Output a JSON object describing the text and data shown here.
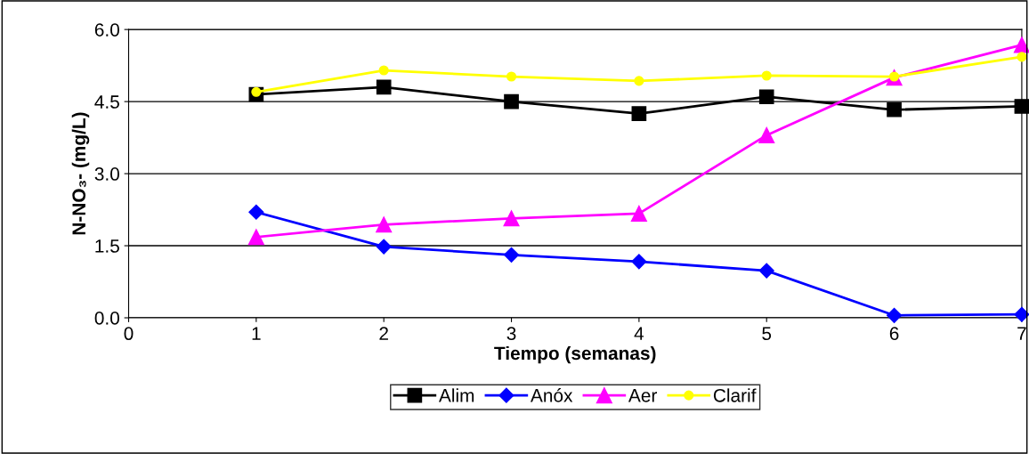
{
  "chart_data": {
    "type": "line",
    "xlabel": "Tiempo (semanas)",
    "ylabel": "N-NO₃- (mg/L)",
    "x": [
      1,
      2,
      3,
      4,
      5,
      6,
      7
    ],
    "series": [
      {
        "name": "Alim",
        "color": "#000000",
        "marker": "square",
        "values": [
          4.65,
          4.8,
          4.5,
          4.25,
          4.6,
          4.33,
          4.4
        ]
      },
      {
        "name": "Anóx",
        "color": "#0000ff",
        "marker": "diamond",
        "values": [
          2.2,
          1.48,
          1.31,
          1.17,
          0.98,
          0.05,
          0.07
        ]
      },
      {
        "name": "Aer",
        "color": "#ff00ff",
        "marker": "triangle",
        "values": [
          1.68,
          1.94,
          2.07,
          2.17,
          3.8,
          5.0,
          5.68
        ]
      },
      {
        "name": "Clarif",
        "color": "#ffff00",
        "marker": "circle",
        "values": [
          4.7,
          5.15,
          5.02,
          4.93,
          5.04,
          5.02,
          5.43
        ]
      }
    ],
    "xlim": [
      0,
      7
    ],
    "xticks": [
      0,
      1,
      2,
      3,
      4,
      5,
      6,
      7
    ],
    "ylim": [
      0,
      6
    ],
    "yticks": [
      {
        "value": 0,
        "label": "0.0"
      },
      {
        "value": 1.5,
        "label": "1.5"
      },
      {
        "value": 3,
        "label": "3.0"
      },
      {
        "value": 4.5,
        "label": "4.5"
      },
      {
        "value": 6,
        "label": "6.0"
      }
    ],
    "grid": "y",
    "legend": "bottom"
  }
}
